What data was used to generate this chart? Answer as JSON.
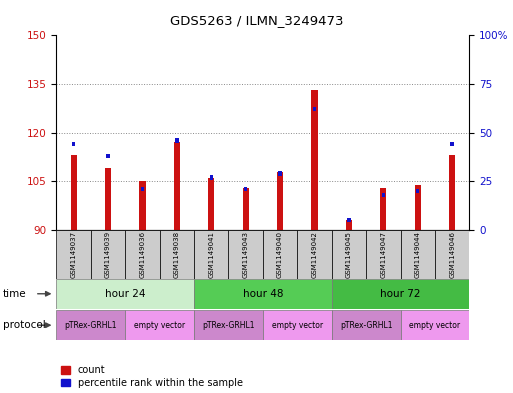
{
  "title": "GDS5263 / ILMN_3249473",
  "samples": [
    "GSM1149037",
    "GSM1149039",
    "GSM1149036",
    "GSM1149038",
    "GSM1149041",
    "GSM1149043",
    "GSM1149040",
    "GSM1149042",
    "GSM1149045",
    "GSM1149047",
    "GSM1149044",
    "GSM1149046"
  ],
  "count_values": [
    113,
    109,
    105,
    117,
    106,
    103,
    108,
    133,
    93,
    103,
    104,
    113
  ],
  "percentile_values": [
    44,
    38,
    21,
    46,
    27,
    21,
    29,
    62,
    5,
    18,
    20,
    44
  ],
  "ylim_left": [
    90,
    150
  ],
  "ylim_right": [
    0,
    100
  ],
  "yticks_left": [
    90,
    105,
    120,
    135,
    150
  ],
  "yticks_right": [
    0,
    25,
    50,
    75,
    100
  ],
  "ytick_labels_right": [
    "0",
    "25",
    "50",
    "75",
    "100%"
  ],
  "bar_color_red": "#cc1111",
  "bar_color_blue": "#1111cc",
  "bar_width": 0.18,
  "time_groups": [
    {
      "label": "hour 24",
      "start": 0,
      "end": 3,
      "color": "#cceecc"
    },
    {
      "label": "hour 48",
      "start": 4,
      "end": 7,
      "color": "#55cc55"
    },
    {
      "label": "hour 72",
      "start": 8,
      "end": 11,
      "color": "#44bb44"
    }
  ],
  "protocol_groups": [
    {
      "label": "pTRex-GRHL1",
      "start": 0,
      "end": 1,
      "color": "#cc88cc"
    },
    {
      "label": "empty vector",
      "start": 2,
      "end": 3,
      "color": "#ee99ee"
    },
    {
      "label": "pTRex-GRHL1",
      "start": 4,
      "end": 5,
      "color": "#cc88cc"
    },
    {
      "label": "empty vector",
      "start": 6,
      "end": 7,
      "color": "#ee99ee"
    },
    {
      "label": "pTRex-GRHL1",
      "start": 8,
      "end": 9,
      "color": "#cc88cc"
    },
    {
      "label": "empty vector",
      "start": 10,
      "end": 11,
      "color": "#ee99ee"
    }
  ],
  "grid_color": "#888888",
  "bg_color": "#ffffff",
  "tick_color_left": "#cc1111",
  "tick_color_right": "#1111cc",
  "legend_items": [
    {
      "label": "count",
      "color": "#cc1111"
    },
    {
      "label": "percentile rank within the sample",
      "color": "#1111cc"
    }
  ],
  "sample_bg_color": "#cccccc"
}
